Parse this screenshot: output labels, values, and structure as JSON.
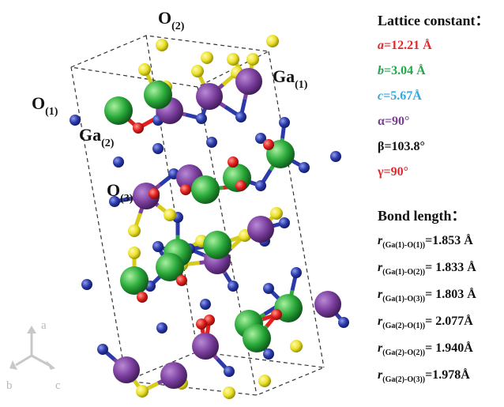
{
  "labels": {
    "o2": {
      "sym": "O",
      "sub": "(2)"
    },
    "ga1": {
      "sym": "Ga",
      "sub": "(1)"
    },
    "o1": {
      "sym": "O",
      "sub": "(1)"
    },
    "ga2": {
      "sym": "Ga",
      "sub": "(2)"
    },
    "o3": {
      "sym": "O",
      "sub": "(3)"
    }
  },
  "axes": {
    "a": "a",
    "b": "b",
    "c": "c"
  },
  "lattice": {
    "title": "Lattice constant：",
    "params": [
      {
        "sym": "a",
        "value": "=12.21 Å",
        "color": "#e3262b",
        "italic": true
      },
      {
        "sym": "b",
        "value": "=3.04 Å",
        "color": "#21a84a",
        "italic": true
      },
      {
        "sym": "c",
        "value": "=5.67Å",
        "color": "#2fa8e0",
        "italic": true
      },
      {
        "sym": "α",
        "value": "=90°",
        "color": "#7a3e98",
        "italic": false
      },
      {
        "sym": "β",
        "value": "=103.8°",
        "color": "#111111",
        "italic": false
      },
      {
        "sym": "γ",
        "value": "=90°",
        "color": "#e3262b",
        "italic": false
      }
    ]
  },
  "bonds": {
    "title": "Bond length：",
    "items": [
      {
        "r": "r",
        "sub": "(Ga(1)-O(1))",
        "value": "=1.853 Å"
      },
      {
        "r": "r",
        "sub": "(Ga(1)-O(2))",
        "value": "= 1.833 Å"
      },
      {
        "r": "r",
        "sub": "(Ga(1)-O(3))",
        "value": "= 1.803 Å"
      },
      {
        "r": "r",
        "sub": "(Ga(2)-O(1))",
        "value": "= 2.077Å"
      },
      {
        "r": "r",
        "sub": "(Ga(2)-O(2))",
        "value": "= 1.940Å"
      },
      {
        "r": "r",
        "sub": "(Ga(2)-O(3))",
        "value": "=1.978Å"
      }
    ]
  },
  "colors": {
    "ga1": "#7b3f9e",
    "ga2": "#2aaa3a",
    "o1": "#2b3aa8",
    "o2": "#ebe02a",
    "o3": "#e0201e",
    "cell": "#333333"
  }
}
